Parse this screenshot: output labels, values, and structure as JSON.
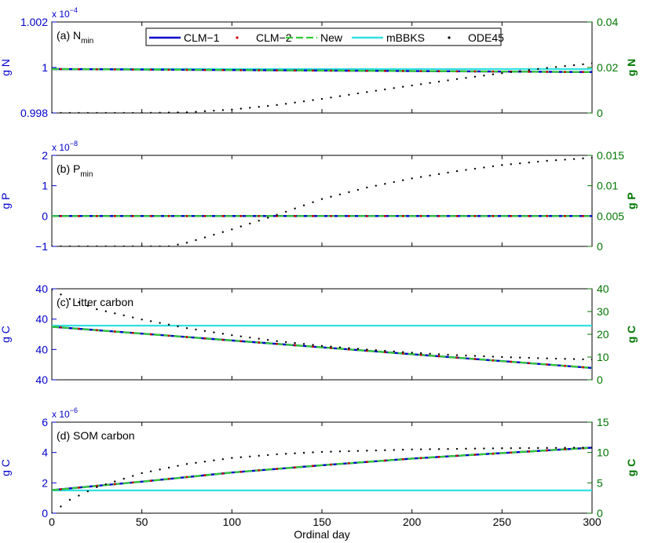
{
  "chart_data": {
    "type": "line",
    "x_label": "Ordinal day",
    "x_range": [
      0,
      300
    ],
    "x_ticks": [
      "0",
      "50",
      "100",
      "150",
      "200",
      "250",
      "300"
    ],
    "legend": {
      "placement": "top-center",
      "entries": [
        {
          "name": "CLM−1",
          "color": "#0000cc",
          "style": "solid"
        },
        {
          "name": "CLM−2",
          "color": "#cc0000",
          "style": "dots"
        },
        {
          "name": "New",
          "color": "#33cc33",
          "style": "dashed"
        },
        {
          "name": "mBBKS",
          "color": "#33e0e0",
          "style": "solid"
        },
        {
          "name": "ODE45",
          "color": "#000000",
          "style": "dotted"
        }
      ]
    },
    "panels": [
      {
        "id": "a",
        "label_prefix": "(a) N",
        "label_sub": "min",
        "left_ylabel": "g N",
        "right_ylabel": "g N",
        "left_exponent": "x 10",
        "left_exponent_power": "−4",
        "left_range": [
          0.998,
          1.002
        ],
        "left_ticks": [
          "0.998",
          "1",
          "1.002"
        ],
        "right_range": [
          0,
          0.04
        ],
        "right_ticks": [
          "0",
          "0.02",
          "0.04"
        ],
        "series": {
          "clm": {
            "axis": "left",
            "x": [
              0,
              300
            ],
            "y": [
              0.99993,
              0.9998
            ]
          },
          "mbbks": {
            "axis": "left",
            "x": [
              0,
              300
            ],
            "y": [
              0.99993,
              0.99993
            ]
          },
          "ode45": {
            "axis": "right",
            "x": [
              0,
              25,
              50,
              75,
              100,
              125,
              150,
              175,
              200,
              225,
              250,
              275,
              300
            ],
            "y": [
              0,
              0,
              0,
              0.0003,
              0.0015,
              0.0035,
              0.0062,
              0.0092,
              0.0121,
              0.0149,
              0.0175,
              0.0198,
              0.0218
            ]
          }
        }
      },
      {
        "id": "b",
        "label_prefix": "(b) P",
        "label_sub": "min",
        "left_ylabel": "g P",
        "right_ylabel": "g P",
        "left_exponent": "x 10",
        "left_exponent_power": "−8",
        "left_range": [
          -1,
          2
        ],
        "left_ticks": [
          "−1",
          "0",
          "1",
          "2"
        ],
        "right_range": [
          0,
          0.015
        ],
        "right_ticks": [
          "0",
          "0.005",
          "0.01",
          "0.015"
        ],
        "series": {
          "clm": {
            "axis": "left",
            "x": [
              0,
              300
            ],
            "y": [
              0,
              0
            ]
          },
          "mbbks": {
            "axis": "left",
            "x": [
              0,
              300
            ],
            "y": [
              0,
              0
            ]
          },
          "ode45": {
            "axis": "right",
            "x": [
              0,
              25,
              50,
              65,
              75,
              100,
              125,
              150,
              175,
              200,
              225,
              250,
              275,
              300
            ],
            "y": [
              0,
              0,
              0,
              0,
              0.0006,
              0.0028,
              0.0052,
              0.0078,
              0.0097,
              0.0112,
              0.0124,
              0.0134,
              0.0141,
              0.0146
            ]
          }
        }
      },
      {
        "id": "c",
        "label_prefix": "(c) Litter carbon",
        "label_sub": "",
        "left_ylabel": "g C",
        "right_ylabel": "g C",
        "left_exponent": "",
        "left_exponent_power": "",
        "left_range": [
          0,
          40
        ],
        "left_ticks": [
          "40",
          "40",
          "40",
          "40"
        ],
        "right_range": [
          0,
          40
        ],
        "right_ticks": [
          "0",
          "10",
          "20",
          "30",
          "40"
        ],
        "series": {
          "clm": {
            "axis": "right",
            "x": [
              0,
              300
            ],
            "y": [
              23.3,
              5.2
            ]
          },
          "mbbks": {
            "axis": "right",
            "x": [
              0,
              300
            ],
            "y": [
              23.8,
              23.8
            ]
          },
          "ode45": {
            "axis": "right",
            "x": [
              0,
              10,
              25,
              50,
              75,
              100,
              125,
              150,
              175,
              200,
              225,
              250,
              275,
              300
            ],
            "y": [
              39.5,
              35.5,
              31,
              26.5,
              22.7,
              19.6,
              17,
              14.9,
              13.3,
              11.9,
              10.8,
              10,
              9.4,
              8.9
            ]
          }
        }
      },
      {
        "id": "d",
        "label_prefix": "(d) SOM carbon",
        "label_sub": "",
        "left_ylabel": "g C",
        "right_ylabel": "g C",
        "left_exponent": "x 10",
        "left_exponent_power": "−6",
        "left_range": [
          0,
          6
        ],
        "left_ticks": [
          "0",
          "2",
          "4",
          "6"
        ],
        "right_range": [
          0,
          15
        ],
        "right_ticks": [
          "0",
          "5",
          "10",
          "15"
        ],
        "series": {
          "clm": {
            "axis": "right",
            "x": [
              0,
              50,
              100,
              150,
              200,
              250,
              300
            ],
            "y": [
              3.8,
              5.2,
              6.7,
              7.9,
              9.0,
              9.9,
              10.8
            ]
          },
          "mbbks": {
            "axis": "left",
            "x": [
              0,
              300
            ],
            "y": [
              1.5,
              1.5
            ]
          },
          "ode45": {
            "axis": "right",
            "x": [
              0,
              10,
              25,
              50,
              75,
              100,
              125,
              150,
              175,
              200,
              250,
              300
            ],
            "y": [
              0,
              2.2,
              4.3,
              6.6,
              8.1,
              9.1,
              9.7,
              10.1,
              10.3,
              10.5,
              10.7,
              10.8
            ]
          }
        }
      }
    ]
  }
}
